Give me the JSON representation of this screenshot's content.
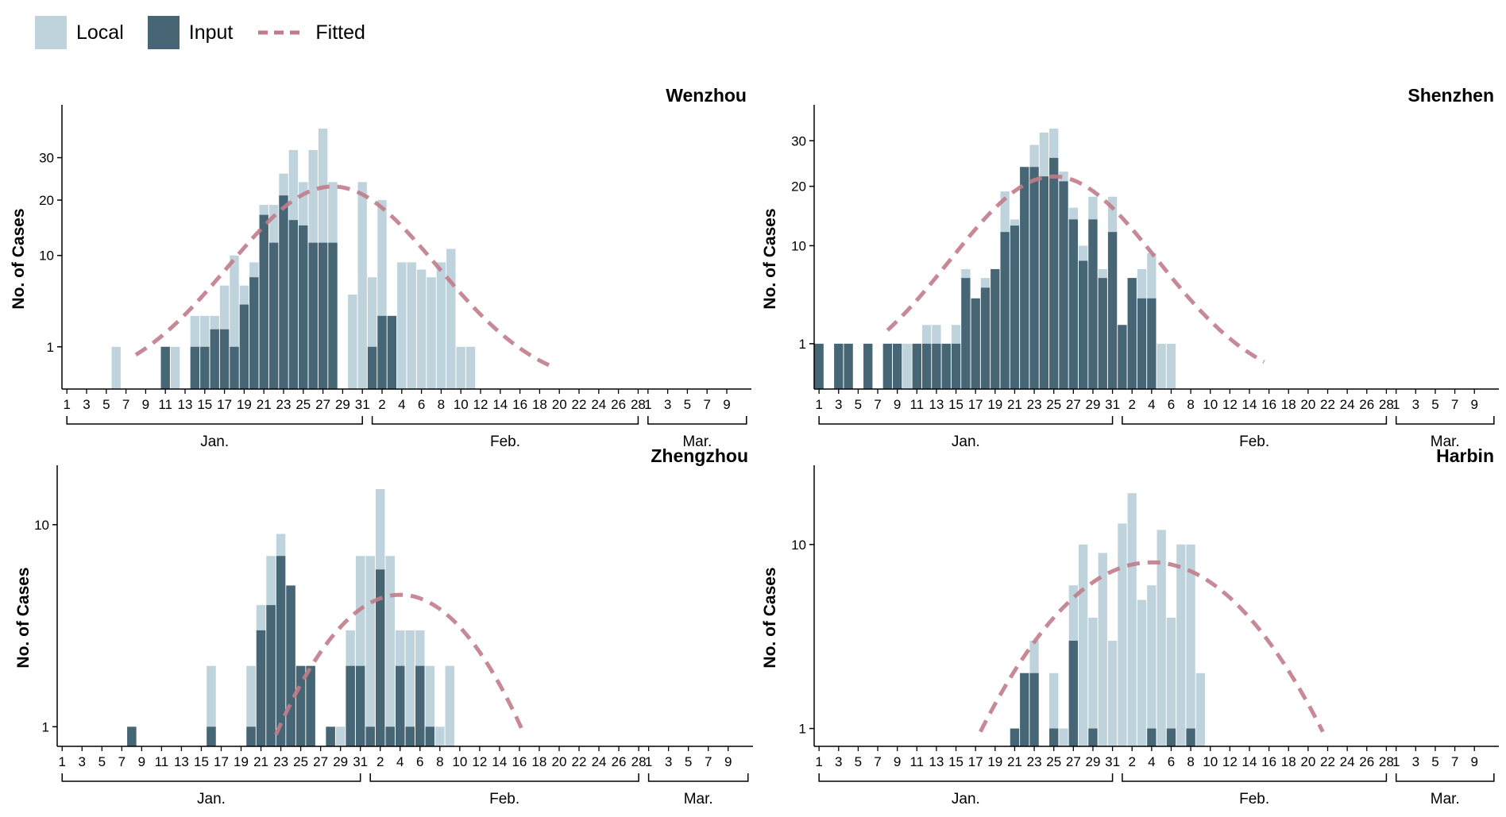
{
  "legend": {
    "local": {
      "label": "Local",
      "color": "#bfd3dc"
    },
    "input": {
      "label": "Input",
      "color": "#466675"
    },
    "fitted": {
      "label": "Fitted",
      "color": "#c07c89"
    }
  },
  "axis_common": {
    "ylabel": "No. of Cases",
    "x_tick_labels": [
      "1",
      "3",
      "5",
      "7",
      "9",
      "11",
      "13",
      "15",
      "17",
      "19",
      "21",
      "23",
      "25",
      "27",
      "29",
      "31",
      "2",
      "4",
      "6",
      "8",
      "10",
      "12",
      "14",
      "16",
      "18",
      "20",
      "22",
      "24",
      "26",
      "28",
      "1",
      "3",
      "5",
      "7",
      "9"
    ],
    "months": [
      "Jan.",
      "Feb.",
      "Mar."
    ]
  },
  "chart_data": [
    {
      "type": "bar",
      "title": "Wenzhou",
      "stacked": true,
      "y_scale": "sqrt",
      "ylim": [
        0,
        38
      ],
      "y_ticks": [
        1,
        10,
        20,
        30
      ],
      "x_days": "Jan 1 - Mar 10",
      "series": [
        {
          "name": "Input",
          "values": [
            0,
            0,
            0,
            0,
            0,
            0,
            0,
            0,
            0,
            0,
            1,
            0,
            0,
            1,
            1,
            2,
            2,
            1,
            4,
            7,
            17,
            12,
            21,
            16,
            15,
            12,
            12,
            12,
            0,
            0,
            0,
            1,
            3,
            3,
            0,
            0,
            0,
            0,
            0,
            0,
            0,
            0,
            0,
            0,
            0,
            0,
            0,
            0,
            0,
            0,
            0,
            0,
            0,
            0,
            0,
            0,
            0,
            0,
            0,
            0,
            0,
            0,
            0,
            0,
            0,
            0,
            0,
            0,
            0,
            0
          ]
        },
        {
          "name": "Local",
          "values": [
            0,
            0,
            0,
            0,
            0,
            1,
            0,
            0,
            0,
            0,
            0,
            1,
            0,
            2,
            2,
            1,
            4,
            9,
            2,
            2,
            2,
            7,
            5,
            16,
            9,
            20,
            26,
            12,
            0,
            5,
            24,
            6,
            17,
            0,
            9,
            9,
            8,
            7,
            9,
            11,
            1,
            1,
            0,
            0,
            0,
            0,
            0,
            0,
            0,
            0,
            0,
            0,
            0,
            0,
            0,
            0,
            0,
            0,
            0,
            0,
            0,
            0,
            0,
            0,
            0,
            0,
            0,
            0,
            0,
            0
          ]
        }
      ],
      "fitted_peak_day": 28
    },
    {
      "type": "bar",
      "title": "Shenzhen",
      "stacked": true,
      "y_scale": "sqrt",
      "ylim": [
        0,
        33
      ],
      "y_ticks": [
        1,
        10,
        20,
        30
      ],
      "x_days": "Jan 1 - Mar 10",
      "series": [
        {
          "name": "Input",
          "values": [
            1,
            0,
            1,
            1,
            0,
            1,
            0,
            1,
            1,
            0,
            1,
            1,
            1,
            1,
            1,
            6,
            4,
            5,
            7,
            12,
            13,
            24,
            24,
            22,
            26,
            21,
            14,
            8,
            14,
            6,
            12,
            2,
            6,
            4,
            4,
            0,
            0,
            0,
            0,
            0,
            0,
            0,
            0,
            0,
            0,
            0,
            0,
            0,
            0,
            0,
            0,
            0,
            0,
            0,
            0,
            0,
            0,
            0,
            0,
            0,
            0,
            0,
            0,
            0,
            0,
            0,
            0,
            0,
            0,
            0
          ]
        },
        {
          "name": "Local",
          "values": [
            0,
            0,
            0,
            0,
            0,
            0,
            0,
            0,
            0,
            1,
            0,
            1,
            1,
            0,
            1,
            1,
            0,
            1,
            0,
            7,
            1,
            0,
            5,
            10,
            7,
            2,
            2,
            2,
            4,
            1,
            6,
            0,
            0,
            3,
            5,
            1,
            1,
            0,
            0,
            0,
            0,
            0,
            0,
            0,
            0,
            0,
            0,
            0,
            0,
            0,
            0,
            0,
            0,
            0,
            0,
            0,
            0,
            0,
            0,
            0,
            0,
            0,
            0,
            0,
            0,
            0,
            0,
            0,
            0,
            0
          ]
        }
      ],
      "fitted_peak_day": 25
    },
    {
      "type": "bar",
      "title": "Zhengzhou",
      "stacked": true,
      "y_scale": "log",
      "ylim": [
        0.8,
        15
      ],
      "y_ticks": [
        1,
        10
      ],
      "x_days": "Jan 1 - Mar 10",
      "series": [
        {
          "name": "Input",
          "values": [
            0,
            0,
            0,
            0,
            0,
            0,
            0,
            1,
            0,
            0,
            0,
            0,
            0,
            0,
            0,
            1,
            0,
            0,
            0,
            1,
            3,
            4,
            7,
            5,
            2,
            2,
            0,
            1,
            0,
            2,
            2,
            1,
            6,
            1,
            2,
            1,
            2,
            1,
            0,
            0,
            0,
            0,
            0,
            0,
            0,
            0,
            0,
            0,
            0,
            0,
            0,
            0,
            0,
            0,
            0,
            0,
            0,
            0,
            0,
            0,
            0,
            0,
            0,
            0,
            0,
            0,
            0,
            0,
            0,
            0
          ]
        },
        {
          "name": "Local",
          "values": [
            0,
            0,
            0,
            0,
            0,
            0,
            0,
            0,
            0,
            0,
            0,
            0,
            0,
            0,
            0,
            1,
            0,
            0,
            0,
            1,
            1,
            3,
            2,
            0,
            0,
            0,
            0,
            0,
            1,
            1,
            5,
            6,
            9,
            6,
            1,
            2,
            1,
            1,
            1,
            2,
            0,
            0,
            0,
            0,
            0,
            0,
            0,
            0,
            0,
            0,
            0,
            0,
            0,
            0,
            0,
            0,
            0,
            0,
            0,
            0,
            0,
            0,
            0,
            0,
            0,
            0,
            0,
            0,
            0,
            0
          ]
        }
      ],
      "fitted_peak_day": 35
    },
    {
      "type": "bar",
      "title": "Harbin",
      "stacked": true,
      "y_scale": "log",
      "ylim": [
        0.8,
        20
      ],
      "y_ticks": [
        1,
        10
      ],
      "x_days": "Jan 1 - Mar 10",
      "series": [
        {
          "name": "Input",
          "values": [
            0,
            0,
            0,
            0,
            0,
            0,
            0,
            0,
            0,
            0,
            0,
            0,
            0,
            0,
            0,
            0,
            0,
            0,
            0,
            0,
            1,
            2,
            2,
            0,
            1,
            0,
            3,
            0,
            1,
            0,
            0,
            0,
            0,
            0,
            1,
            0,
            1,
            0,
            1,
            0,
            0,
            0,
            0,
            0,
            0,
            0,
            0,
            0,
            0,
            0,
            0,
            0,
            0,
            0,
            0,
            0,
            0,
            0,
            0,
            0,
            0,
            0,
            0,
            0,
            0,
            0,
            0,
            0,
            0,
            0
          ]
        },
        {
          "name": "Local",
          "values": [
            0,
            0,
            0,
            0,
            0,
            0,
            0,
            0,
            0,
            0,
            0,
            0,
            0,
            0,
            0,
            0,
            0,
            0,
            0,
            0,
            0,
            0,
            1,
            0,
            1,
            1,
            3,
            10,
            3,
            9,
            3,
            13,
            19,
            5,
            5,
            12,
            3,
            10,
            9,
            2,
            0,
            0,
            0,
            0,
            0,
            0,
            0,
            0,
            0,
            0,
            0,
            0,
            0,
            0,
            0,
            0,
            0,
            0,
            0,
            0,
            0,
            0,
            0,
            0,
            0,
            0,
            0,
            0,
            0,
            0
          ]
        }
      ],
      "fitted_peak_day": 35
    }
  ]
}
